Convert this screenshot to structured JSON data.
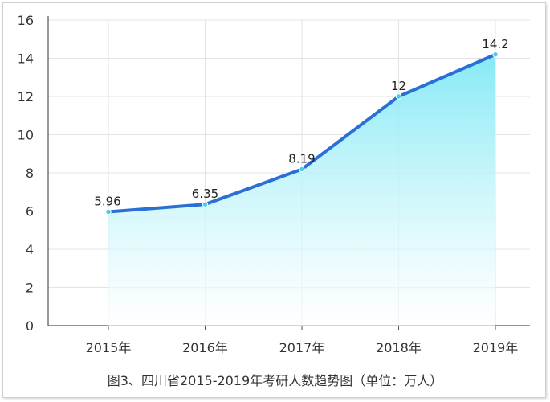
{
  "caption": "图3、四川省2015-2019年考研人数趋势图（单位：万人）",
  "colors": {
    "line": "#2a6fd6",
    "area_top": "#7fe8f5",
    "area_bottom": "#ffffff",
    "grid": "#e3e3e3",
    "axis": "#555555",
    "marker": "#3fd0ee"
  },
  "chart_data": {
    "type": "area",
    "categories": [
      "2015年",
      "2016年",
      "2017年",
      "2018年",
      "2019年"
    ],
    "series": [
      {
        "values": [
          5.96,
          6.35,
          8.19,
          12,
          14.2
        ],
        "labels": [
          "5.96",
          "6.35",
          "8.19",
          "12",
          "14.2"
        ]
      }
    ],
    "yticks": [
      "0",
      "2",
      "4",
      "6",
      "8",
      "10",
      "12",
      "14",
      "16"
    ],
    "ylim": [
      0,
      16
    ],
    "grid": true,
    "legend": "none",
    "title": "图3、四川省2015-2019年考研人数趋势图（单位：万人）"
  }
}
